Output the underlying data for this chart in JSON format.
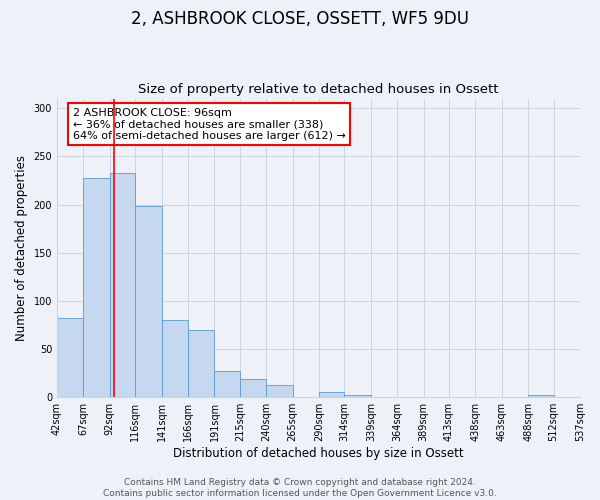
{
  "title": "2, ASHBROOK CLOSE, OSSETT, WF5 9DU",
  "subtitle": "Size of property relative to detached houses in Ossett",
  "xlabel": "Distribution of detached houses by size in Ossett",
  "ylabel": "Number of detached properties",
  "bin_edges": [
    42,
    67,
    92,
    116,
    141,
    166,
    191,
    215,
    240,
    265,
    290,
    314,
    339,
    364,
    389,
    413,
    438,
    463,
    488,
    512,
    537
  ],
  "bar_heights": [
    82,
    228,
    233,
    198,
    80,
    70,
    27,
    19,
    13,
    0,
    5,
    2,
    0,
    0,
    0,
    0,
    0,
    0,
    2,
    0
  ],
  "bar_color": "#c5d8f0",
  "bar_edge_color": "#5b9bd5",
  "red_line_x": 96,
  "ylim": [
    0,
    310
  ],
  "yticks": [
    0,
    50,
    100,
    150,
    200,
    250,
    300
  ],
  "annotation_line1": "2 ASHBROOK CLOSE: 96sqm",
  "annotation_line2": "← 36% of detached houses are smaller (338)",
  "annotation_line3": "64% of semi-detached houses are larger (612) →",
  "footer1": "Contains HM Land Registry data © Crown copyright and database right 2024.",
  "footer2": "Contains public sector information licensed under the Open Government Licence v3.0.",
  "background_color": "#eef2f8",
  "grid_color": "#c8d4e4",
  "title_fontsize": 12,
  "subtitle_fontsize": 9.5,
  "axis_label_fontsize": 8.5,
  "tick_label_fontsize": 7,
  "annotation_fontsize": 8,
  "footer_fontsize": 6.5
}
